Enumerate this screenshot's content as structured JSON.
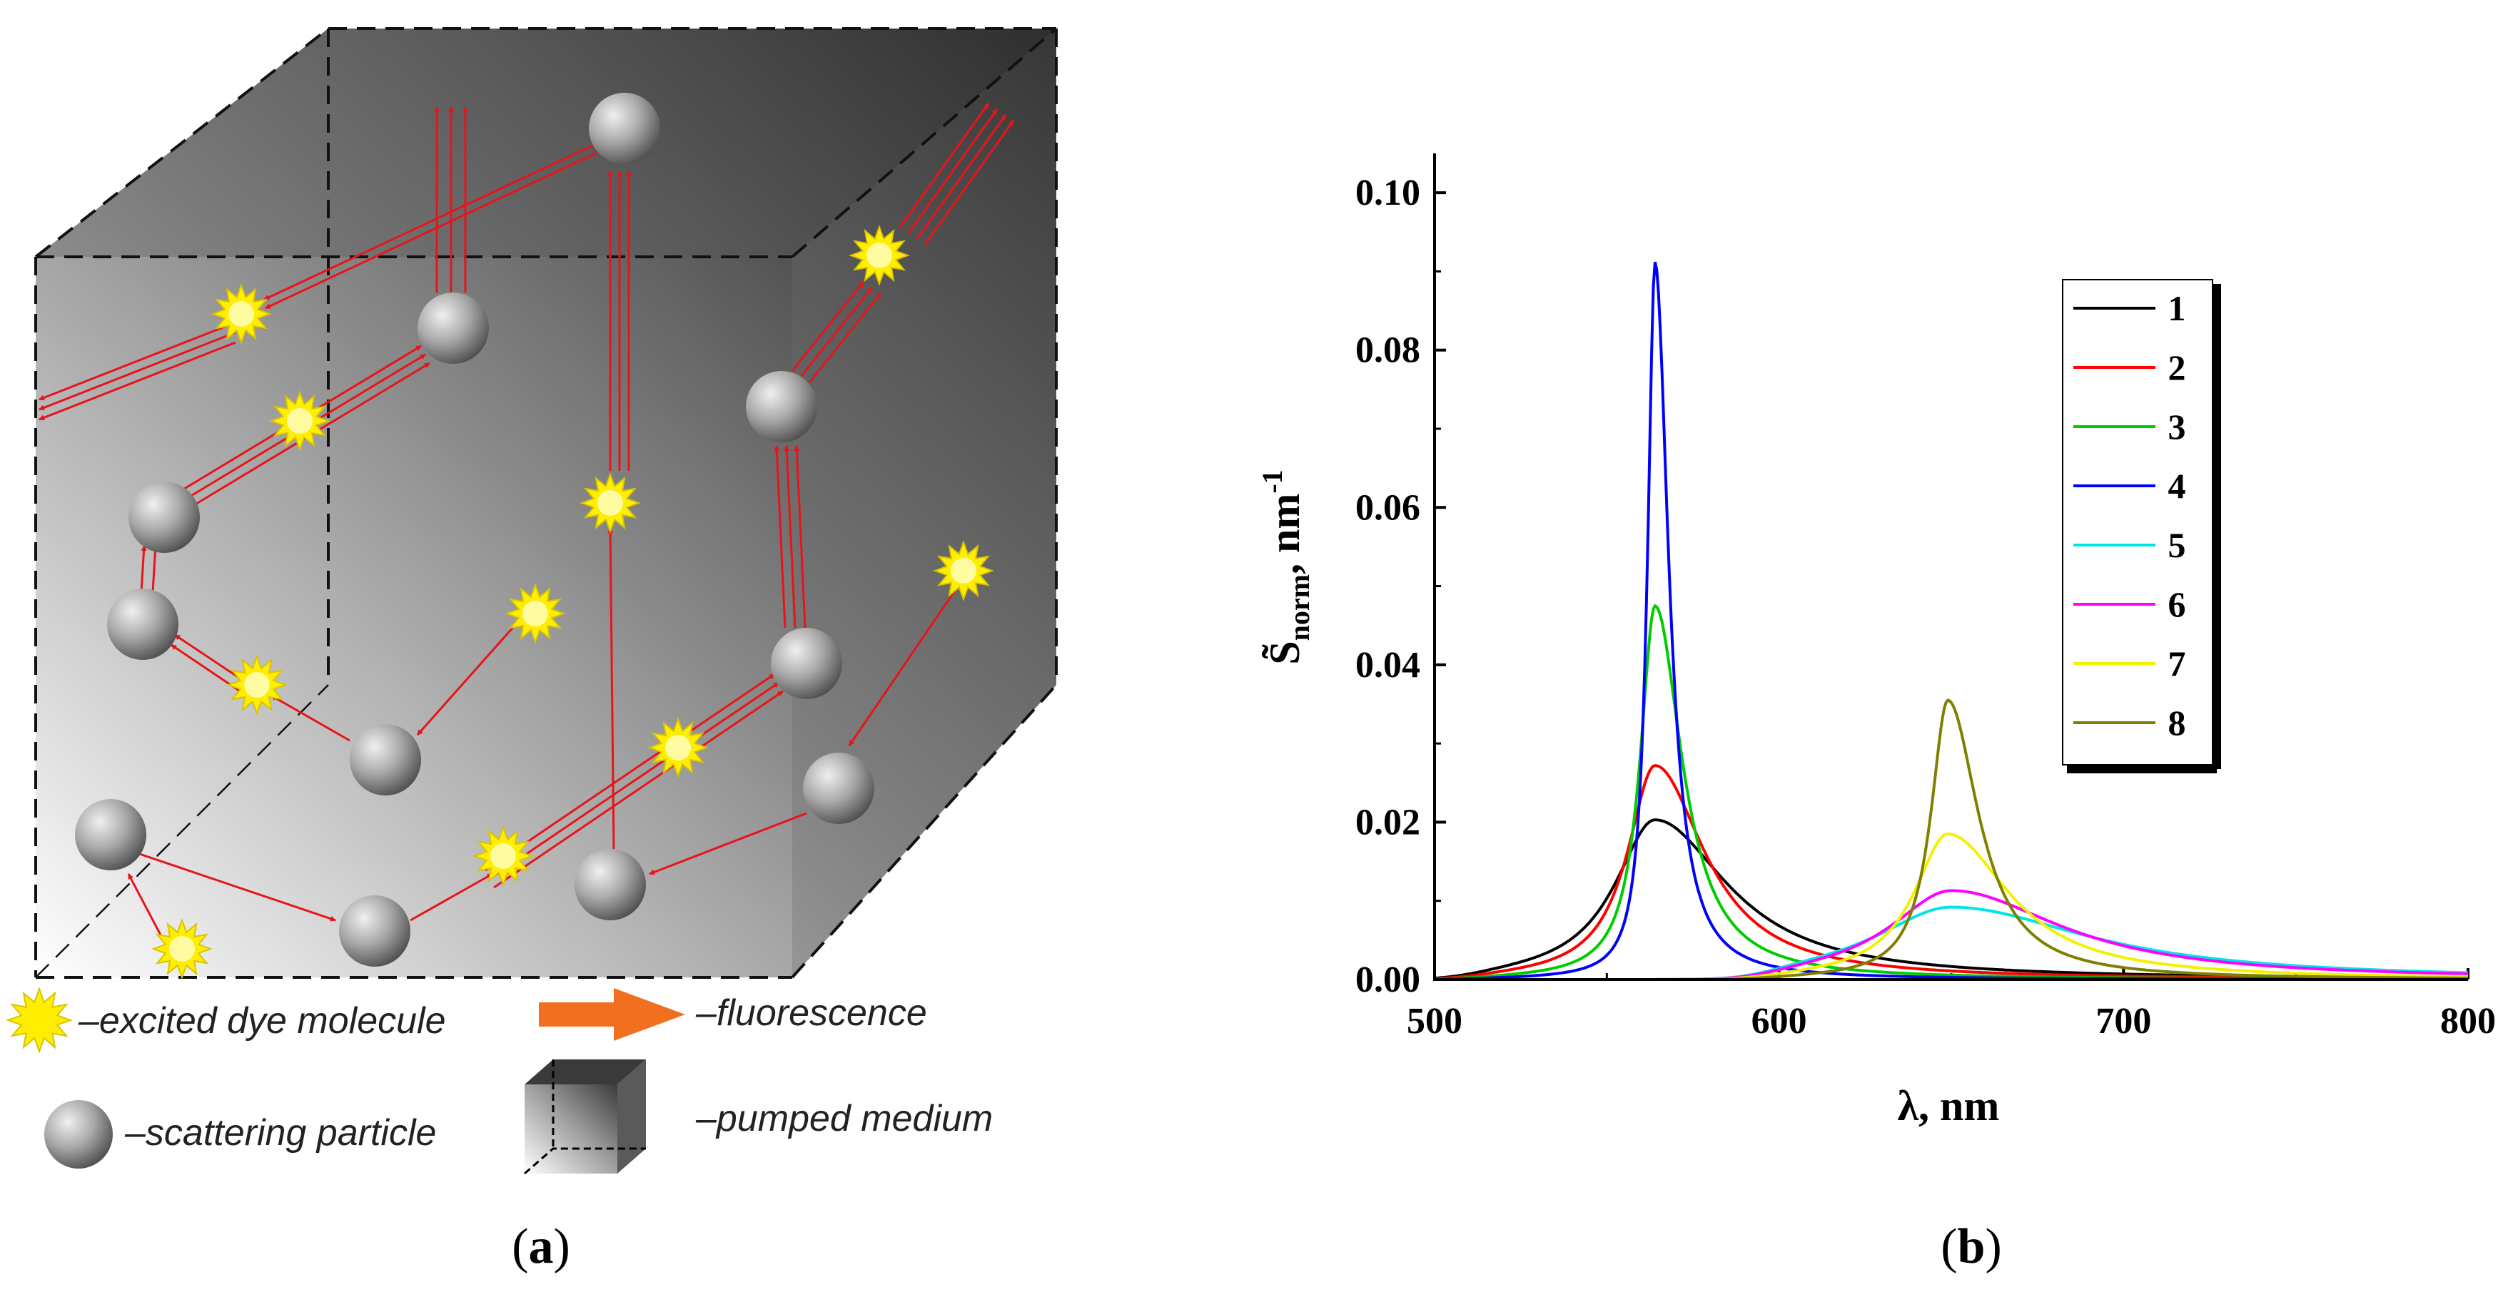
{
  "panel_a": {
    "label_open": "(",
    "label": "a",
    "label_close": ")",
    "legend": {
      "excited_dye": "–excited dye molecule",
      "fluorescence": "–fluorescence",
      "scattering_particle": "–scattering particle",
      "pumped_medium": "–pumped medium"
    },
    "colors": {
      "arrow": "#e8141a",
      "particle": "#8a8a8a",
      "dye": "#ffee00",
      "fluorescence": "#f07020"
    }
  },
  "panel_b": {
    "label_open": "(",
    "label": "b",
    "label_close": ")"
  },
  "chart_data": {
    "type": "line",
    "title": "",
    "xlabel": "λ, nm",
    "ylabel_main": "S̃",
    "ylabel_sub": "norm",
    "ylabel_tail": ", nm",
    "ylabel_sup": "-1",
    "xlim": [
      500,
      800
    ],
    "ylim": [
      0,
      0.105
    ],
    "xticks": [
      500,
      600,
      700,
      800
    ],
    "xtick_labels": [
      "500",
      "600",
      "700",
      "800"
    ],
    "yticks": [
      0,
      0.02,
      0.04,
      0.06,
      0.08,
      0.1
    ],
    "ytick_labels": [
      "0.00",
      "0.02",
      "0.04",
      "0.06",
      "0.08",
      "0.10"
    ],
    "grid": false,
    "legend_position": "top-right",
    "series": [
      {
        "name": "1",
        "color": "#000000",
        "peak_x": 564,
        "peak_y": 0.0203,
        "width": 19,
        "shape": "lorentz-asym"
      },
      {
        "name": "2",
        "color": "#ff0000",
        "peak_x": 564,
        "peak_y": 0.0272,
        "width": 13,
        "shape": "lorentz-asym"
      },
      {
        "name": "3",
        "color": "#00cc00",
        "peak_x": 564,
        "peak_y": 0.0475,
        "width": 7,
        "shape": "lorentz-asym"
      },
      {
        "name": "4",
        "color": "#0000ff",
        "peak_x": 564,
        "peak_y": 0.0912,
        "width": 3.5,
        "shape": "lorentz-asym"
      },
      {
        "name": "5",
        "color": "#00e5e5",
        "peak_x": 650,
        "peak_y": 0.0092,
        "width": 36,
        "shape": "lorentz-asym"
      },
      {
        "name": "6",
        "color": "#ff00ff",
        "peak_x": 650,
        "peak_y": 0.0113,
        "width": 29,
        "shape": "lorentz-asym"
      },
      {
        "name": "7",
        "color": "#f2f200",
        "peak_x": 649,
        "peak_y": 0.0185,
        "width": 16,
        "shape": "lorentz-asym"
      },
      {
        "name": "8",
        "color": "#7f7f00",
        "peak_x": 649,
        "peak_y": 0.0355,
        "width": 8,
        "shape": "lorentz-asym"
      }
    ]
  }
}
